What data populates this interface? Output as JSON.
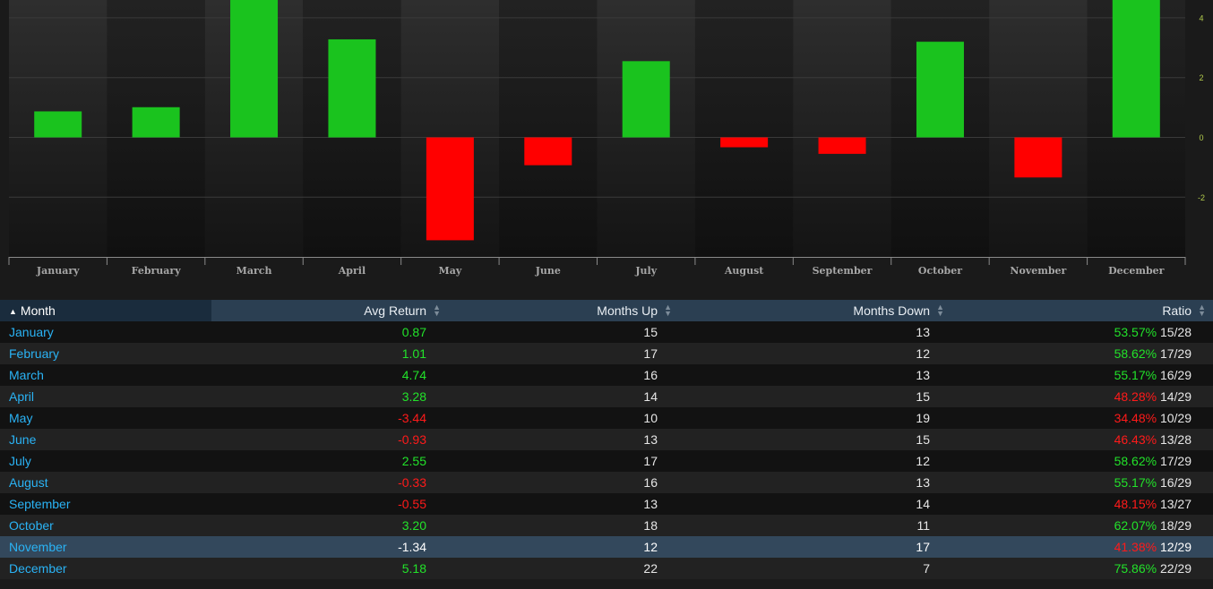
{
  "chart_data": {
    "type": "bar",
    "categories": [
      "January",
      "February",
      "March",
      "April",
      "May",
      "June",
      "July",
      "August",
      "September",
      "October",
      "November",
      "December"
    ],
    "values": [
      0.87,
      1.01,
      4.74,
      3.28,
      -3.44,
      -0.93,
      2.55,
      -0.33,
      -0.55,
      3.2,
      -1.34,
      5.18
    ],
    "y_ticks": [
      "4",
      "2",
      "0",
      "-2"
    ],
    "ylim": [
      -4,
      4.5
    ],
    "grid": true,
    "colors": {
      "positive": "#1ac31e",
      "negative": "#ff0000",
      "tick_label": "#b3cc4d",
      "category_label": "#a6a6a6"
    }
  },
  "table": {
    "headers": {
      "month": "Month",
      "avg_return": "Avg Return",
      "months_up": "Months Up",
      "months_down": "Months Down",
      "ratio": "Ratio"
    },
    "sort_icons": {
      "sorted": "▲",
      "unsorted_up": "▲",
      "unsorted_down": "▼"
    },
    "highlighted_row": 10,
    "rows": [
      {
        "month": "January",
        "avg_return": "0.87",
        "up": "15",
        "down": "13",
        "ratio_pct": "53.57%",
        "ratio_frac": "15/28",
        "sign": "pos"
      },
      {
        "month": "February",
        "avg_return": "1.01",
        "up": "17",
        "down": "12",
        "ratio_pct": "58.62%",
        "ratio_frac": "17/29",
        "sign": "pos"
      },
      {
        "month": "March",
        "avg_return": "4.74",
        "up": "16",
        "down": "13",
        "ratio_pct": "55.17%",
        "ratio_frac": "16/29",
        "sign": "pos"
      },
      {
        "month": "April",
        "avg_return": "3.28",
        "up": "14",
        "down": "15",
        "ratio_pct": "48.28%",
        "ratio_frac": "14/29",
        "sign": "pos",
        "ratio_sign": "neg"
      },
      {
        "month": "May",
        "avg_return": "-3.44",
        "up": "10",
        "down": "19",
        "ratio_pct": "34.48%",
        "ratio_frac": "10/29",
        "sign": "neg"
      },
      {
        "month": "June",
        "avg_return": "-0.93",
        "up": "13",
        "down": "15",
        "ratio_pct": "46.43%",
        "ratio_frac": "13/28",
        "sign": "neg"
      },
      {
        "month": "July",
        "avg_return": "2.55",
        "up": "17",
        "down": "12",
        "ratio_pct": "58.62%",
        "ratio_frac": "17/29",
        "sign": "pos"
      },
      {
        "month": "August",
        "avg_return": "-0.33",
        "up": "16",
        "down": "13",
        "ratio_pct": "55.17%",
        "ratio_frac": "16/29",
        "sign": "neg",
        "ratio_sign": "pos"
      },
      {
        "month": "September",
        "avg_return": "-0.55",
        "up": "13",
        "down": "14",
        "ratio_pct": "48.15%",
        "ratio_frac": "13/27",
        "sign": "neg"
      },
      {
        "month": "October",
        "avg_return": "3.20",
        "up": "18",
        "down": "11",
        "ratio_pct": "62.07%",
        "ratio_frac": "18/29",
        "sign": "pos"
      },
      {
        "month": "November",
        "avg_return": "-1.34",
        "up": "12",
        "down": "17",
        "ratio_pct": "41.38%",
        "ratio_frac": "12/29",
        "sign": "neg"
      },
      {
        "month": "December",
        "avg_return": "5.18",
        "up": "22",
        "down": "7",
        "ratio_pct": "75.86%",
        "ratio_frac": "22/29",
        "sign": "pos"
      }
    ]
  }
}
